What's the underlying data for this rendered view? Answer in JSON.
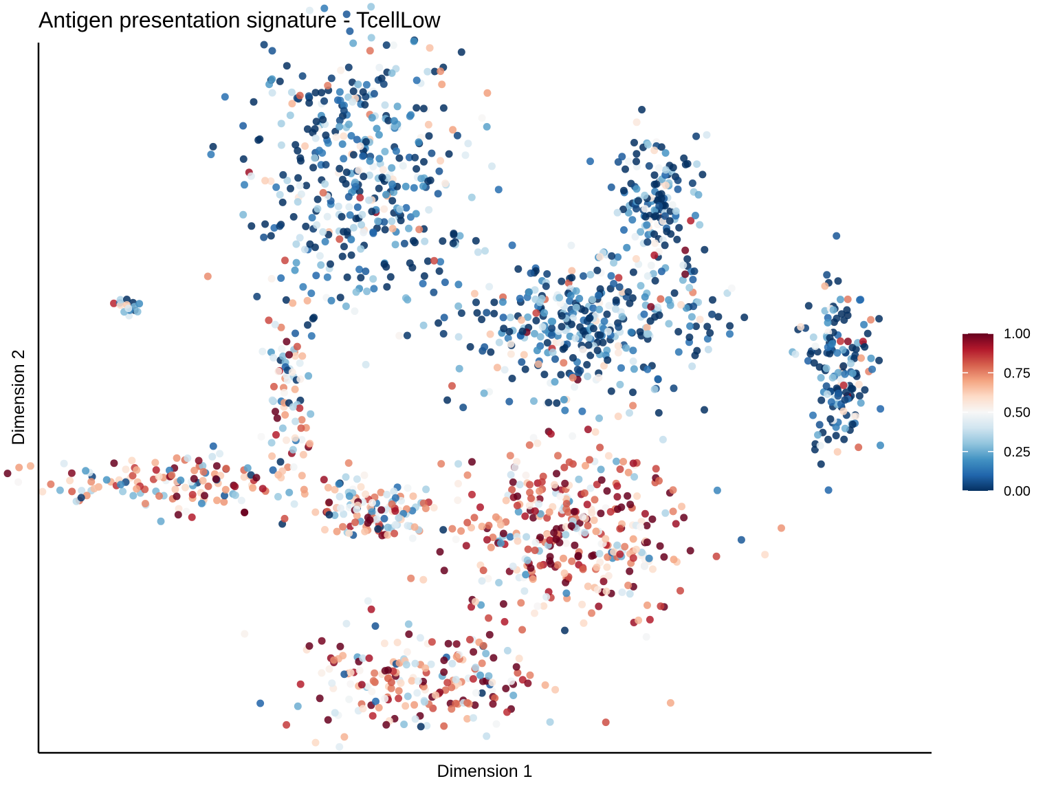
{
  "chart_data": {
    "type": "scatter",
    "title": "Antigen presentation signature - TcellLow",
    "xlabel": "Dimension 1",
    "ylabel": "Dimension 2",
    "axis_ticks_shown": false,
    "grid": false,
    "colorbar": {
      "placement": "right",
      "min": 0.0,
      "max": 1.0,
      "tick_labels": [
        "1.00",
        "0.75",
        "0.50",
        "0.25",
        "0.00"
      ],
      "tick_values": [
        1.0,
        0.75,
        0.5,
        0.25,
        0.0
      ],
      "colors": [
        "#053061",
        "#2166AC",
        "#4393C3",
        "#92C5DE",
        "#D1E5F0",
        "#F7F7F7",
        "#FDDBC7",
        "#F4A582",
        "#D6604D",
        "#B2182B",
        "#67001F"
      ]
    },
    "clusters": [
      {
        "cx": 0.35,
        "cy": 0.83,
        "sx": 0.06,
        "sy": 0.1,
        "n": 420,
        "mean": 0.12
      },
      {
        "cx": 0.62,
        "cy": 0.6,
        "sx": 0.075,
        "sy": 0.05,
        "n": 380,
        "mean": 0.14
      },
      {
        "cx": 0.7,
        "cy": 0.78,
        "sx": 0.025,
        "sy": 0.05,
        "n": 150,
        "mean": 0.1
      },
      {
        "cx": 0.92,
        "cy": 0.55,
        "sx": 0.022,
        "sy": 0.07,
        "n": 160,
        "mean": 0.08
      },
      {
        "cx": 0.08,
        "cy": 0.63,
        "sx": 0.007,
        "sy": 0.006,
        "n": 20,
        "mean": 0.4
      },
      {
        "cx": 0.6,
        "cy": 0.3,
        "sx": 0.07,
        "sy": 0.06,
        "n": 360,
        "mean": 0.72
      },
      {
        "cx": 0.37,
        "cy": 0.33,
        "sx": 0.035,
        "sy": 0.02,
        "n": 120,
        "mean": 0.55
      },
      {
        "cx": 0.27,
        "cy": 0.5,
        "sx": 0.015,
        "sy": 0.06,
        "n": 80,
        "mean": 0.5
      },
      {
        "cx": 0.42,
        "cy": 0.08,
        "sx": 0.07,
        "sy": 0.035,
        "n": 200,
        "mean": 0.7
      },
      {
        "cx": 0.13,
        "cy": 0.37,
        "sx": 0.08,
        "sy": 0.02,
        "n": 140,
        "mean": 0.6
      }
    ]
  }
}
